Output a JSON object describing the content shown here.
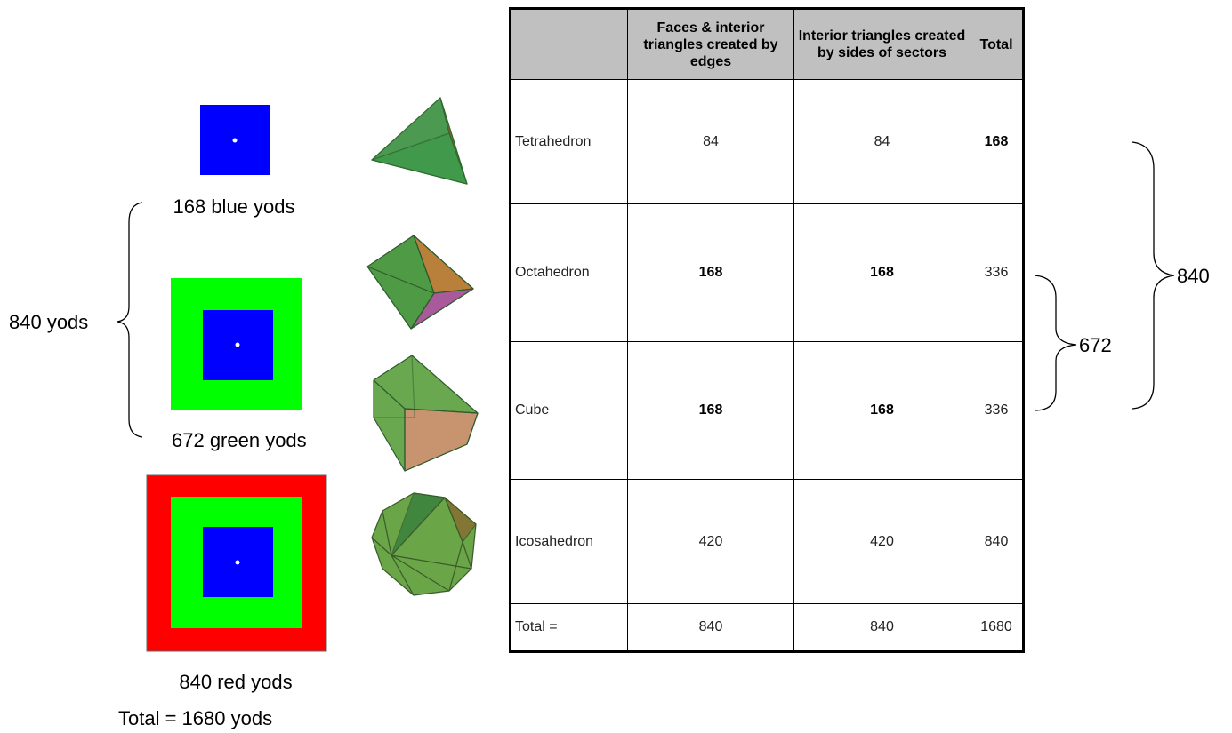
{
  "left": {
    "blue_label": "168 blue yods",
    "group_label": "840 yods",
    "green_label": "672 green yods",
    "red_label": "840 red yods",
    "total_label": "Total = 1680 yods"
  },
  "table": {
    "header": [
      "",
      "Faces & interior triangles created by edges",
      "Interior triangles created by sides of sectors",
      "Total"
    ],
    "rows": [
      [
        "Tetrahedron",
        "84",
        "84",
        "168"
      ],
      [
        "Octahedron",
        "168",
        "168",
        "336"
      ],
      [
        "Cube",
        "168",
        "168",
        "336"
      ],
      [
        "Icosahedron",
        "420",
        "420",
        "840"
      ],
      [
        "Total =",
        "840",
        "840",
        "1680"
      ]
    ]
  },
  "braces": {
    "inner": "672",
    "outer": "840"
  }
}
